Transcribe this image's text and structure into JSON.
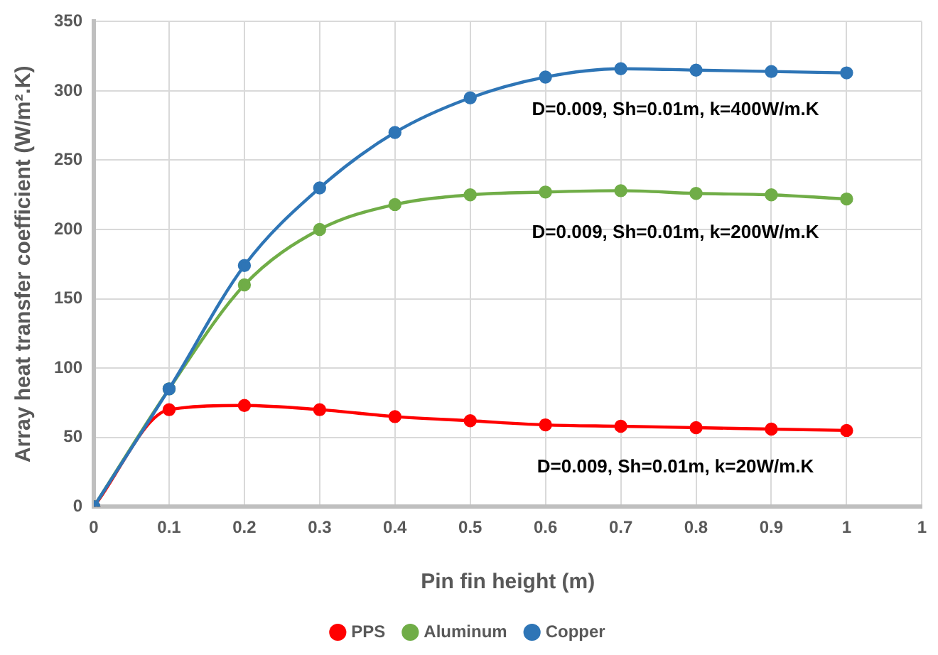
{
  "chart_data": {
    "type": "line",
    "xlabel": "Pin fin height (m)",
    "ylabel": "Array heat transfer coefficient (W/m².K)",
    "x": [
      0,
      0.1,
      0.2,
      0.3,
      0.4,
      0.5,
      0.6,
      0.7,
      0.8,
      0.9,
      1
    ],
    "series": [
      {
        "name": "PPS",
        "color": "#ff0000",
        "values": [
          0,
          70,
          73,
          70,
          65,
          62,
          59,
          58,
          57,
          56,
          55
        ]
      },
      {
        "name": "Aluminum",
        "color": "#70ad47",
        "values": [
          0,
          85,
          160,
          200,
          218,
          225,
          227,
          228,
          226,
          225,
          222
        ]
      },
      {
        "name": "Copper",
        "color": "#2e75b6",
        "values": [
          0,
          85,
          174,
          230,
          270,
          295,
          310,
          316,
          315,
          314,
          313
        ]
      }
    ],
    "xlim": [
      0,
      1.1
    ],
    "xticks": [
      0,
      0.1,
      0.2,
      0.3,
      0.4,
      0.5,
      0.6,
      0.7,
      0.8,
      0.9,
      1,
      {
        "value": 1.1,
        "label": "1"
      }
    ],
    "ylim": [
      0,
      350
    ],
    "yticks": [
      0,
      50,
      100,
      150,
      200,
      250,
      300,
      350
    ],
    "annotations": [
      "D=0.009, Sh=0.01m, k=20W/m.K",
      "D=0.009, Sh=0.01m, k=200W/m.K",
      "D=0.009, Sh=0.01m, k=400W/m.K"
    ],
    "grid": true,
    "legend": "bottom",
    "marker": "circle",
    "line_style": "solid"
  }
}
